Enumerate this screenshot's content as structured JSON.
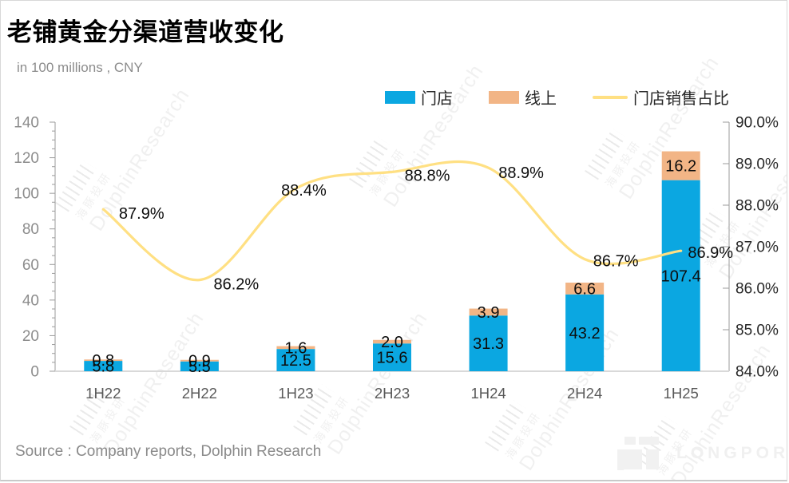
{
  "header": {
    "title": "老铺黄金分渠道营收变化",
    "subtitle": "in 100 millions ,  CNY"
  },
  "legend": [
    {
      "label": "门店",
      "type": "bar",
      "color": "#0BA7E1"
    },
    {
      "label": "线上",
      "type": "bar",
      "color": "#F2B586"
    },
    {
      "label": "门店销售占比",
      "type": "line",
      "color": "#FFE083"
    }
  ],
  "chart_data": {
    "type": "bar",
    "subtype": "stacked-bars-with-right-axis-line",
    "title": "老铺黄金分渠道营收变化",
    "unit": "in 100 millions, CNY",
    "categories": [
      "1H22",
      "2H22",
      "1H23",
      "2H23",
      "1H24",
      "2H24",
      "1H25"
    ],
    "series": [
      {
        "name": "门店",
        "type": "bar",
        "stack": "revenue",
        "color": "#0BA7E1",
        "values": [
          5.8,
          5.5,
          12.5,
          15.6,
          31.3,
          43.2,
          107.4
        ]
      },
      {
        "name": "线上",
        "type": "bar",
        "stack": "revenue",
        "color": "#F2B586",
        "values": [
          0.8,
          0.9,
          1.6,
          2.0,
          3.9,
          6.6,
          16.2
        ]
      },
      {
        "name": "门店销售占比",
        "type": "line",
        "axis": "right",
        "color": "#FFE083",
        "values": [
          87.9,
          86.2,
          88.4,
          88.8,
          88.9,
          86.7,
          86.9
        ],
        "labels": [
          "87.9%",
          "86.2%",
          "88.4%",
          "88.8%",
          "88.9%",
          "86.7%",
          "86.9%"
        ]
      }
    ],
    "left_axis": {
      "min": 0,
      "max": 140,
      "step": 20,
      "minor_step": 5,
      "tick_labels": [
        "0",
        "20",
        "40",
        "60",
        "80",
        "100",
        "120",
        "140"
      ]
    },
    "right_axis": {
      "min": 84,
      "max": 90,
      "step": 1,
      "tick_labels": [
        "84.0%",
        "85.0%",
        "86.0%",
        "87.0%",
        "88.0%",
        "89.0%",
        "90.0%"
      ]
    },
    "grid": false,
    "legend_position": "top"
  },
  "footer": {
    "source": "Source : Company reports, Dolphin Research",
    "brand": "LONGPORT"
  },
  "watermark": {
    "cn": "海豚投研",
    "en": "DolphinResearch"
  }
}
